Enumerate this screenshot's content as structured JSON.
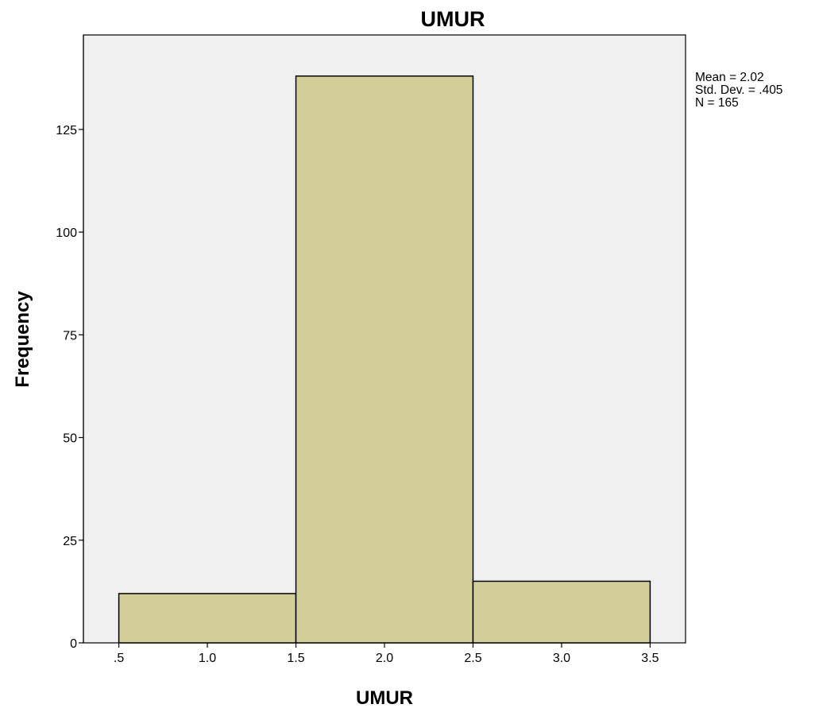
{
  "chart_data": {
    "type": "bar",
    "histogram": true,
    "title": "UMUR",
    "xlabel": "UMUR",
    "ylabel": "Frequency",
    "bins": [
      {
        "start": 0.5,
        "end": 1.5,
        "value": 12
      },
      {
        "start": 1.5,
        "end": 2.5,
        "value": 138
      },
      {
        "start": 2.5,
        "end": 3.5,
        "value": 15
      }
    ],
    "xlim": [
      0.3,
      3.7
    ],
    "ylim": [
      0,
      148
    ],
    "x_ticks": [
      0.5,
      1.0,
      1.5,
      2.0,
      2.5,
      3.0,
      3.5
    ],
    "x_tick_labels": [
      ".5",
      "1.0",
      "1.5",
      "2.0",
      "2.5",
      "3.0",
      "3.5"
    ],
    "y_ticks": [
      0,
      25,
      50,
      75,
      100,
      125
    ],
    "y_tick_labels": [
      "0",
      "25",
      "50",
      "75",
      "100",
      "125"
    ],
    "stats": [
      "Mean = 2.02",
      "Std. Dev. = .405",
      "N = 165"
    ],
    "grid": false,
    "colors": {
      "bar_fill": "#d3ce97",
      "bar_stroke": "#000000",
      "plot_background": "#f0f0f0",
      "frame": "#000000"
    }
  }
}
